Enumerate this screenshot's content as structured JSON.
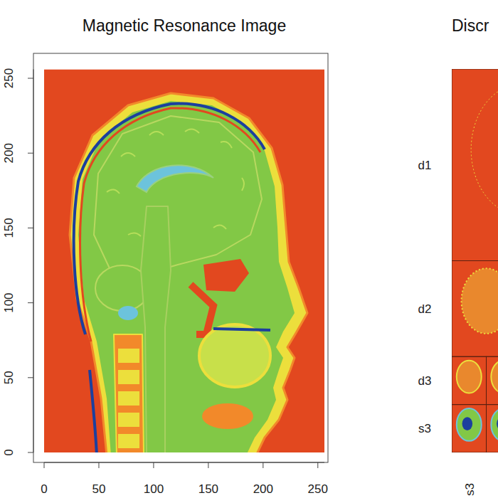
{
  "chart_data": [
    {
      "type": "image",
      "title": "Magnetic Resonance Image",
      "xlim": [
        0,
        256
      ],
      "ylim": [
        0,
        256
      ],
      "xticks": [
        0,
        50,
        100,
        150,
        200,
        250
      ],
      "yticks": [
        0,
        50,
        100,
        150,
        200,
        250
      ]
    },
    {
      "type": "wavelet",
      "title": "Discr",
      "row_labels": [
        "d1",
        "d2",
        "d3",
        "s3"
      ],
      "column_labels": [
        "s3"
      ]
    }
  ]
}
